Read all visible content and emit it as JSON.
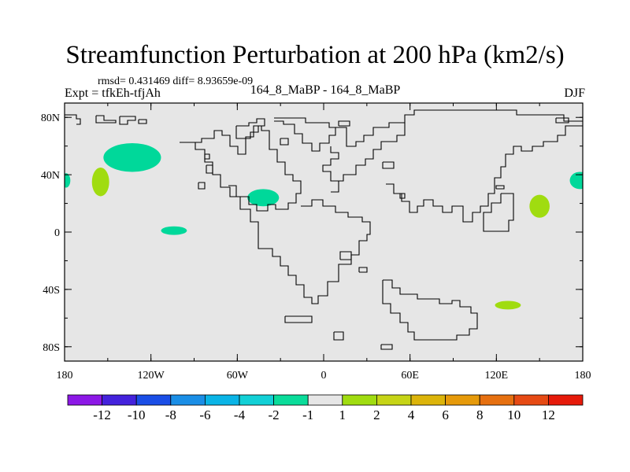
{
  "title": "Streamfunction Perturbation at 200 hPa (km2/s)",
  "stats_text": "rmsd= 0.431469 diff= 8.93659e-09",
  "left_string": "Expt = tfkEh-tfjAh",
  "center_string": "164_8_MaBP - 164_8_MaBP",
  "right_string": "DJF",
  "map": {
    "projection": "cylindrical-equidistant",
    "lon_range": [
      -180,
      180
    ],
    "lat_range": [
      -90,
      90
    ],
    "background_color": "#e6e6e6",
    "coastline_color": "#000000",
    "x_ticks": [
      {
        "lon": -180,
        "label": "180"
      },
      {
        "lon": -120,
        "label": "120W"
      },
      {
        "lon": -60,
        "label": "60W"
      },
      {
        "lon": 0,
        "label": "0"
      },
      {
        "lon": 60,
        "label": "60E"
      },
      {
        "lon": 120,
        "label": "120E"
      },
      {
        "lon": 180,
        "label": "180"
      }
    ],
    "y_ticks": [
      {
        "lat": 80,
        "label": "80N"
      },
      {
        "lat": 40,
        "label": "40N"
      },
      {
        "lat": 0,
        "label": "0"
      },
      {
        "lat": -40,
        "label": "40S"
      },
      {
        "lat": -80,
        "label": "80S"
      }
    ]
  },
  "anomalies": [
    {
      "name": "n-pacific-negative",
      "sign": "negative",
      "color": "#00d89a",
      "lon": -133,
      "lat": 52,
      "rx": 20,
      "ry": 10
    },
    {
      "name": "w-pacific-positive",
      "sign": "positive",
      "color": "#a0dc10",
      "lon": -155,
      "lat": 35,
      "rx": 6,
      "ry": 10
    },
    {
      "name": "w-edge-negative",
      "sign": "negative",
      "color": "#00d89a",
      "lon": -179,
      "lat": 36,
      "rx": 3,
      "ry": 5
    },
    {
      "name": "e-edge-negative",
      "sign": "negative",
      "color": "#00d89a",
      "lon": 178,
      "lat": 36,
      "rx": 7,
      "ry": 6
    },
    {
      "name": "tropical-pacific-negative",
      "sign": "negative",
      "color": "#00d89a",
      "lon": -104,
      "lat": 1,
      "rx": 9,
      "ry": 3
    },
    {
      "name": "n-america-negative",
      "sign": "negative",
      "color": "#00d89a",
      "lon": -42,
      "lat": 24,
      "rx": 11,
      "ry": 6
    },
    {
      "name": "nw-pacific-positive",
      "sign": "positive",
      "color": "#a0dc10",
      "lon": 150,
      "lat": 18,
      "rx": 7,
      "ry": 8
    },
    {
      "name": "s-indian-ocean-positive",
      "sign": "positive",
      "color": "#a0dc10",
      "lon": 128,
      "lat": -51,
      "rx": 9,
      "ry": 3
    }
  ],
  "colorbar": {
    "colors": [
      "#8c18e6",
      "#4422dc",
      "#1a4ee6",
      "#1a8ee6",
      "#0ab4e6",
      "#12d0d6",
      "#0adc9a",
      "#e6e6e6",
      "#a0dc10",
      "#c6d416",
      "#dcb40a",
      "#e69a0a",
      "#e67010",
      "#e64a14",
      "#e61a0a"
    ],
    "labels": [
      "-12",
      "-10",
      "-8",
      "-6",
      "-4",
      "-2",
      "-1",
      "1",
      "2",
      "4",
      "6",
      "8",
      "10",
      "12"
    ]
  }
}
